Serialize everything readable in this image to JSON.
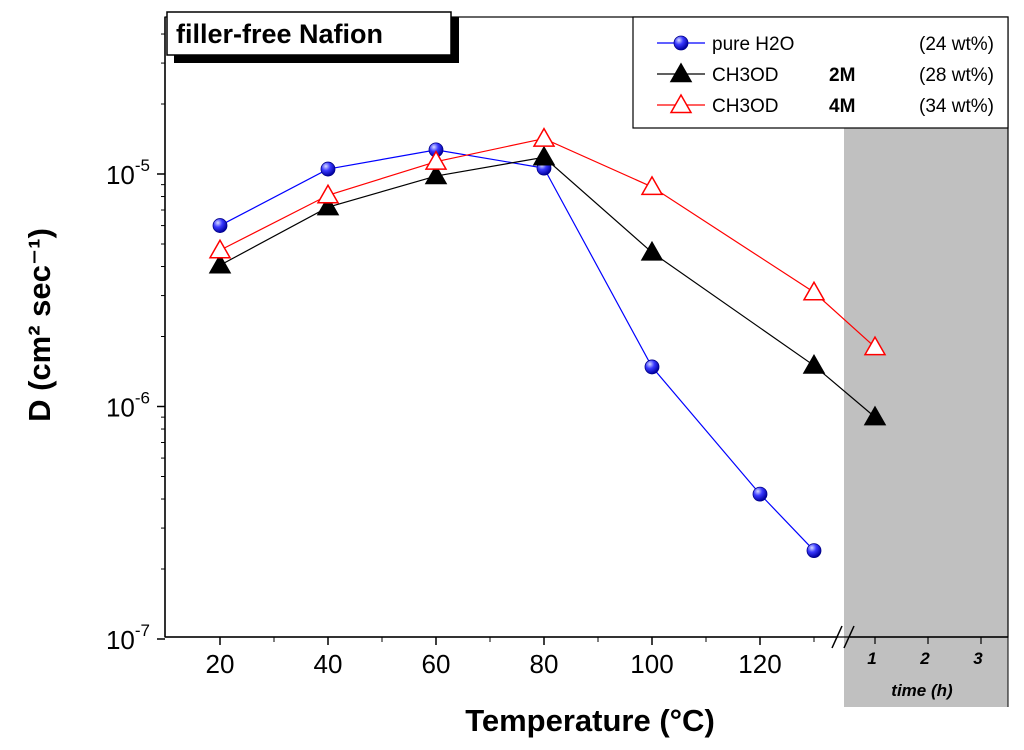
{
  "chart_data": {
    "type": "line",
    "title": "filler-free Nafion",
    "xlabel": "Temperature   (°C)",
    "ylabel": "D (cm² sec⁻¹)",
    "yscale": "log",
    "ylim": [
      1e-07,
      6e-05
    ],
    "xlim": [
      10,
      135
    ],
    "x_ticks": [
      20,
      40,
      60,
      80,
      100,
      120
    ],
    "y_ticks": [
      {
        "value": 1e-05,
        "base": "10",
        "exp": "-5"
      },
      {
        "value": 1e-06,
        "base": "10",
        "exp": "-6"
      },
      {
        "value": 1e-07,
        "base": "10",
        "exp": "-7"
      }
    ],
    "time_axis": {
      "label": "time (h)",
      "ticks": [
        "1",
        "2",
        "3"
      ],
      "shaded": true
    },
    "series": [
      {
        "name": "pure H2O",
        "legend_bold": "",
        "legend_note": "(24 wt%)",
        "color": "#0000ff",
        "marker": "sphere",
        "points": [
          {
            "x": 20,
            "y": 6e-06
          },
          {
            "x": 40,
            "y": 1.05e-05
          },
          {
            "x": 60,
            "y": 1.27e-05
          },
          {
            "x": 80,
            "y": 1.06e-05
          },
          {
            "x": 100,
            "y": 1.48e-06
          },
          {
            "x": 120,
            "y": 4.2e-07
          },
          {
            "x": 130,
            "y": 2.4e-07
          }
        ]
      },
      {
        "name": "CH3OD",
        "legend_bold": "2M",
        "legend_note": "(28 wt%)",
        "color": "#000000",
        "marker": "filled-triangle",
        "points": [
          {
            "x": 20,
            "y": 4.05e-06
          },
          {
            "x": 40,
            "y": 7.2e-06
          },
          {
            "x": 60,
            "y": 9.8e-06
          },
          {
            "x": 80,
            "y": 1.18e-05
          },
          {
            "x": 100,
            "y": 4.6e-06
          },
          {
            "x": 130,
            "y": 1.5e-06
          },
          {
            "time": 1,
            "y": 9e-07
          }
        ]
      },
      {
        "name": "CH3OD",
        "legend_bold": "4M",
        "legend_note": "(34 wt%)",
        "color": "#ff0000",
        "marker": "open-triangle",
        "points": [
          {
            "x": 20,
            "y": 4.7e-06
          },
          {
            "x": 40,
            "y": 8.1e-06
          },
          {
            "x": 60,
            "y": 1.13e-05
          },
          {
            "x": 80,
            "y": 1.42e-05
          },
          {
            "x": 100,
            "y": 8.8e-06
          },
          {
            "x": 130,
            "y": 3.1e-06
          },
          {
            "time": 1,
            "y": 1.8e-06
          }
        ]
      }
    ]
  }
}
